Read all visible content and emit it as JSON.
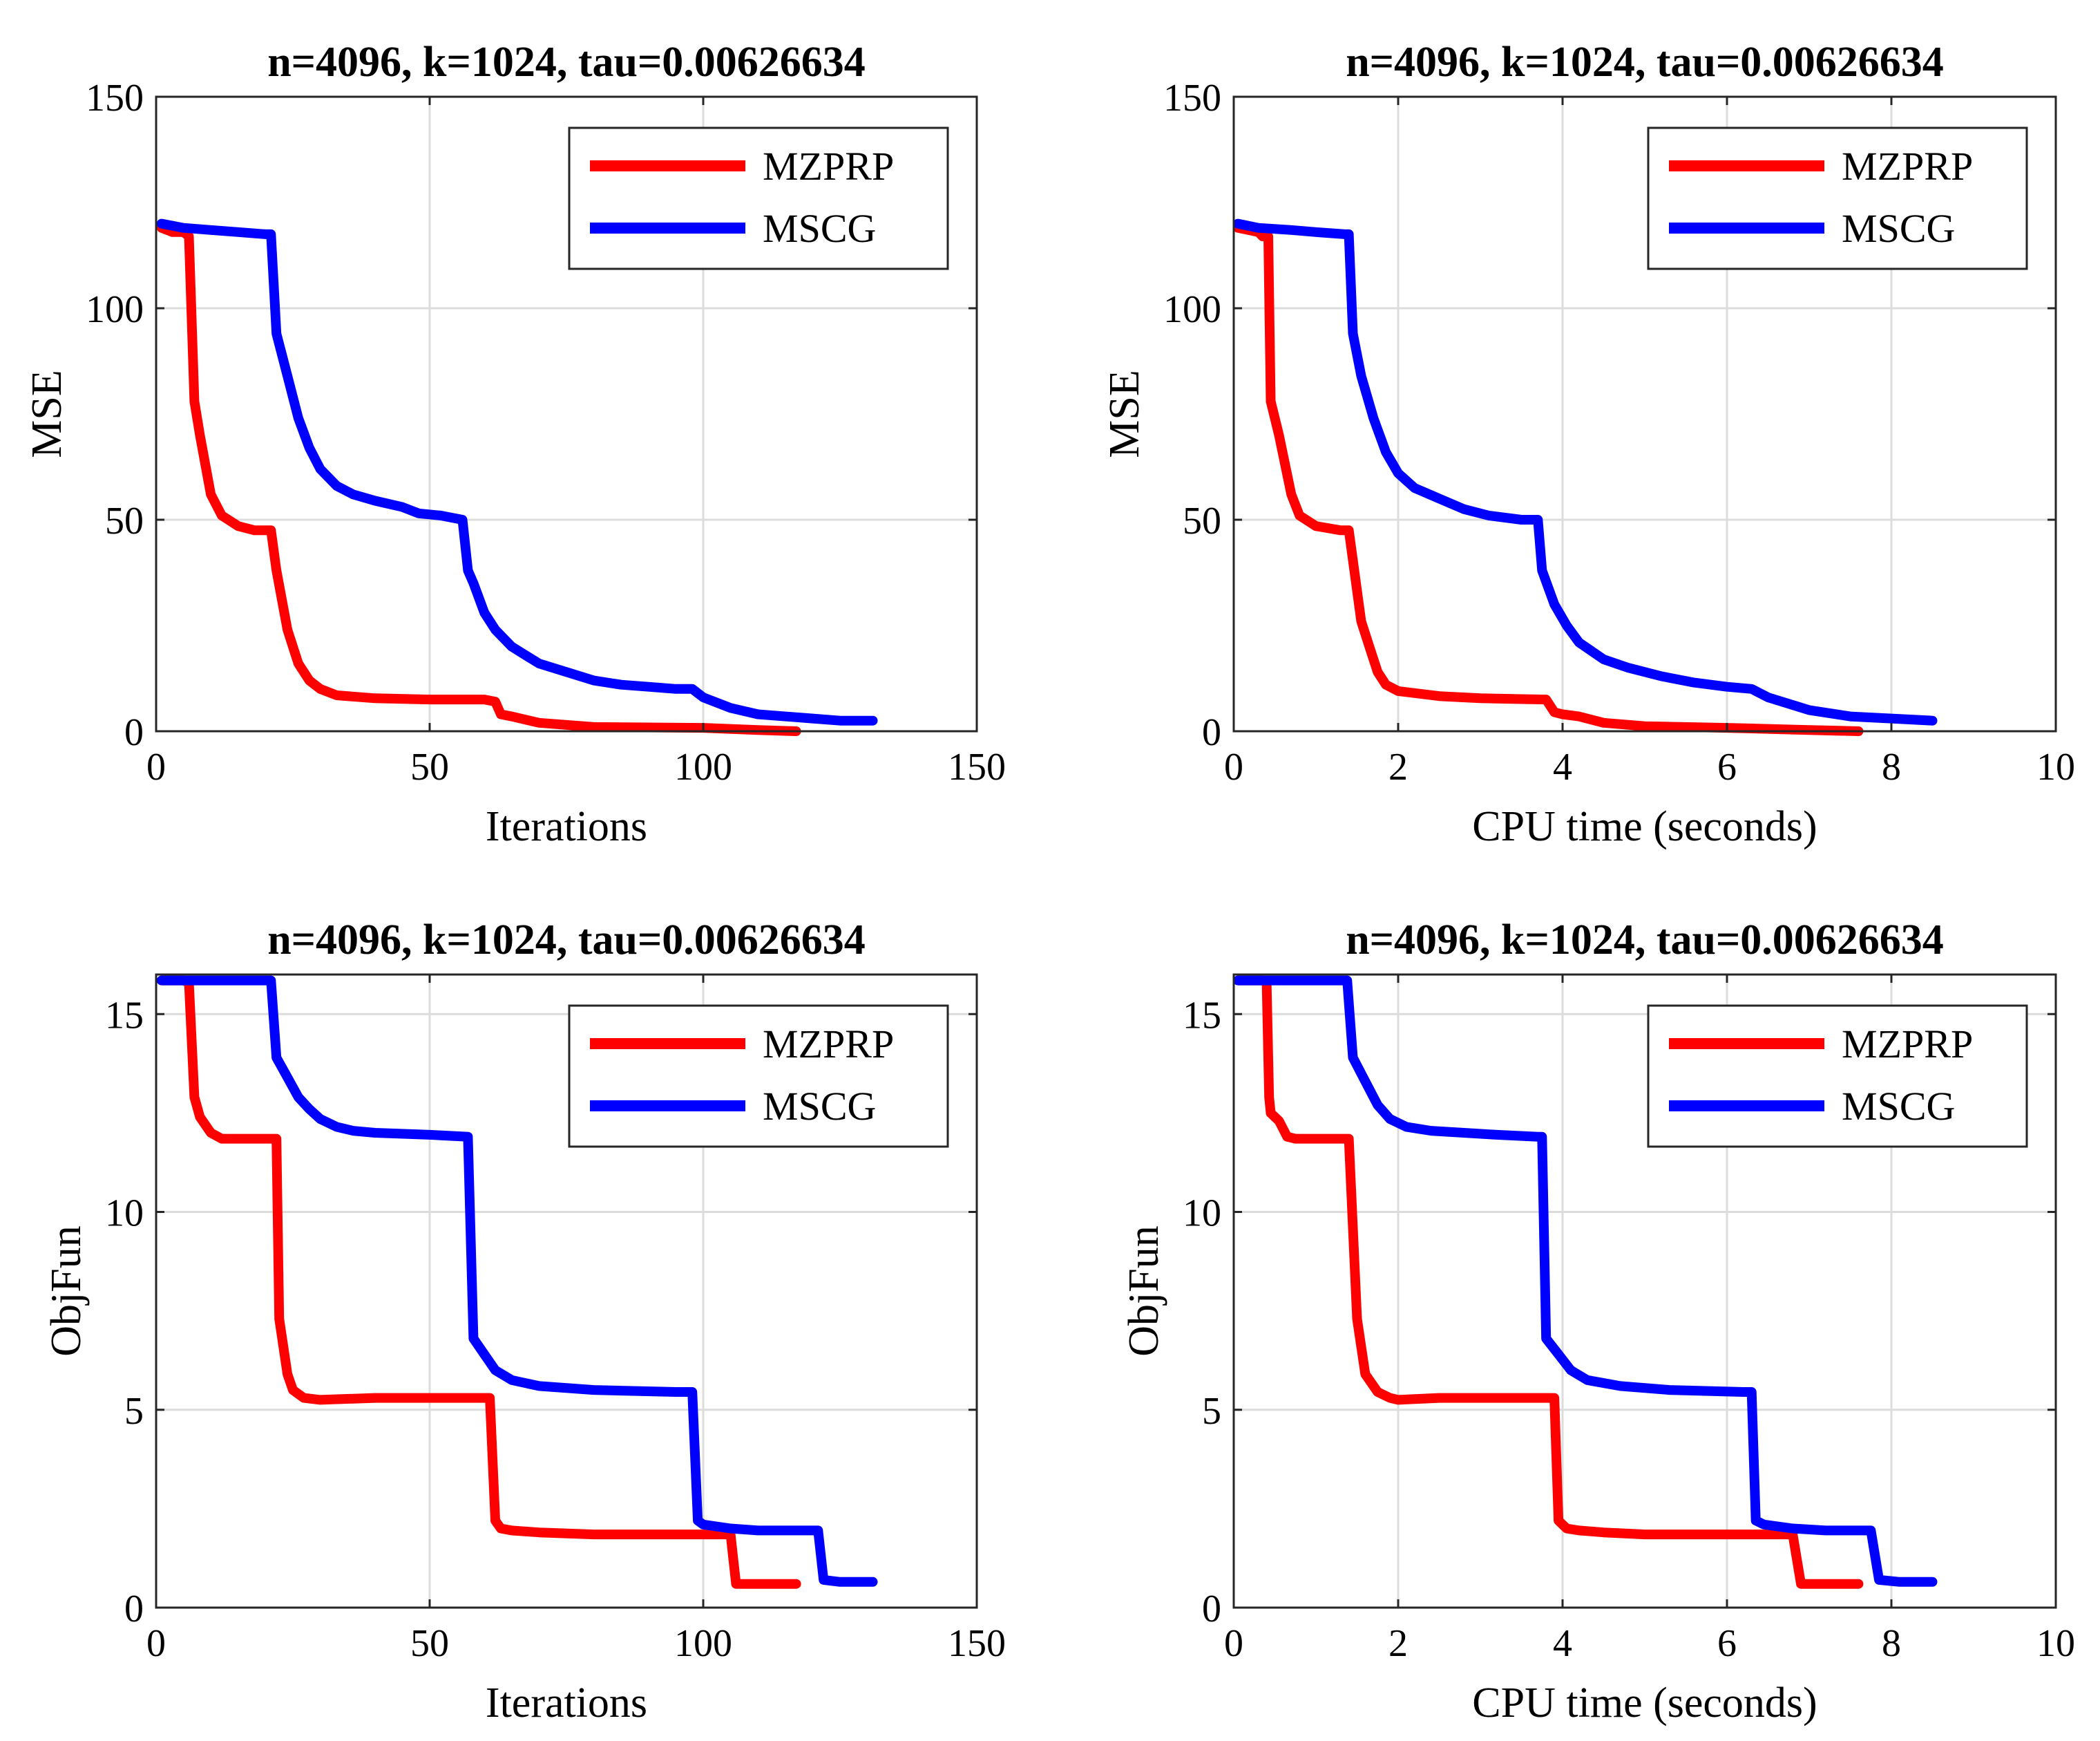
{
  "chart_data": [
    {
      "type": "line",
      "title": "n=4096, k=1024, tau=0.00626634",
      "xlabel": "Iterations",
      "ylabel": "MSE",
      "xlim": [
        0,
        150
      ],
      "ylim": [
        0,
        150
      ],
      "xticks": [
        0,
        50,
        100,
        150
      ],
      "yticks": [
        0,
        50,
        100,
        150
      ],
      "xtick_labels": [
        "0",
        "50",
        "100",
        "150"
      ],
      "ytick_labels": [
        "0",
        "50",
        "100",
        "150"
      ],
      "grid": true,
      "legend": "top-right",
      "series": [
        {
          "name": "MZPRP",
          "color": "#ff0000",
          "x": [
            1,
            3,
            5,
            6,
            7,
            8,
            10,
            12,
            15,
            18,
            21,
            22,
            24,
            26,
            28,
            30,
            33,
            40,
            50,
            60,
            62,
            63,
            65,
            70,
            80,
            100,
            110,
            117
          ],
          "y": [
            119,
            118,
            118,
            117,
            78,
            70,
            56,
            51,
            48.5,
            47.5,
            47.5,
            38,
            24,
            16,
            12,
            10,
            8.5,
            7.8,
            7.5,
            7.5,
            7,
            4,
            3.5,
            2,
            1,
            0.8,
            0.3,
            0
          ]
        },
        {
          "name": "MSCG",
          "color": "#0000ff",
          "x": [
            1,
            5,
            10,
            15,
            20,
            21,
            22,
            24,
            26,
            28,
            30,
            33,
            36,
            40,
            45,
            48,
            52,
            56,
            57,
            58,
            60,
            62,
            65,
            70,
            75,
            80,
            85,
            90,
            95,
            98,
            100,
            105,
            110,
            120,
            125,
            131
          ],
          "y": [
            120,
            119,
            118.5,
            118,
            117.5,
            117.5,
            94,
            84,
            74,
            67,
            62,
            58,
            56,
            54.5,
            53,
            51.5,
            51,
            50,
            38,
            35,
            28,
            24,
            20,
            16,
            14,
            12,
            11,
            10.5,
            10,
            10,
            8,
            5.5,
            4,
            3,
            2.5,
            2.5
          ]
        }
      ]
    },
    {
      "type": "line",
      "title": "n=4096, k=1024, tau=0.00626634",
      "xlabel": "CPU time (seconds)",
      "ylabel": "MSE",
      "xlim": [
        0,
        10
      ],
      "ylim": [
        0,
        150
      ],
      "xticks": [
        0,
        2,
        4,
        6,
        8,
        10
      ],
      "yticks": [
        0,
        50,
        100,
        150
      ],
      "xtick_labels": [
        "0",
        "2",
        "4",
        "6",
        "8",
        "10"
      ],
      "ytick_labels": [
        "0",
        "50",
        "100",
        "150"
      ],
      "grid": true,
      "legend": "top-right",
      "series": [
        {
          "name": "MZPRP",
          "color": "#ff0000",
          "x": [
            0.05,
            0.3,
            0.35,
            0.42,
            0.45,
            0.55,
            0.7,
            0.8,
            1.0,
            1.3,
            1.4,
            1.55,
            1.65,
            1.75,
            1.85,
            2.0,
            2.5,
            3.0,
            3.5,
            3.8,
            3.9,
            4.0,
            4.2,
            4.5,
            5.0,
            6.0,
            7.0,
            7.6
          ],
          "y": [
            119,
            118,
            117,
            117,
            78,
            70,
            56,
            51,
            48.5,
            47.5,
            47.5,
            26,
            20,
            14,
            11,
            9.5,
            8.3,
            7.8,
            7.6,
            7.5,
            4.5,
            4,
            3.5,
            2,
            1.2,
            0.8,
            0.3,
            0
          ]
        },
        {
          "name": "MSCG",
          "color": "#0000ff",
          "x": [
            0.05,
            0.3,
            0.7,
            1.0,
            1.35,
            1.4,
            1.45,
            1.55,
            1.7,
            1.85,
            2.0,
            2.2,
            2.5,
            2.8,
            3.1,
            3.5,
            3.7,
            3.75,
            3.9,
            4.05,
            4.2,
            4.5,
            4.8,
            5.2,
            5.6,
            6.0,
            6.3,
            6.5,
            7.0,
            7.5,
            8.0,
            8.5
          ],
          "y": [
            120,
            119,
            118.5,
            118,
            117.5,
            117.5,
            94,
            84,
            74,
            66,
            61,
            57.5,
            55,
            52.5,
            51,
            50,
            50,
            38,
            30,
            25,
            21,
            17,
            15,
            13,
            11.5,
            10.5,
            10,
            8,
            5,
            3.5,
            3,
            2.5
          ]
        }
      ]
    },
    {
      "type": "line",
      "title": "n=4096, k=1024, tau=0.00626634",
      "xlabel": "Iterations",
      "ylabel": "ObjFun",
      "xlim": [
        0,
        150
      ],
      "ylim": [
        0,
        16
      ],
      "xticks": [
        0,
        50,
        100,
        150
      ],
      "yticks": [
        0,
        5,
        10,
        15
      ],
      "xtick_labels": [
        "0",
        "50",
        "100",
        "150"
      ],
      "ytick_labels": [
        "0",
        "5",
        "10",
        "15"
      ],
      "grid": true,
      "legend": "top-right",
      "series": [
        {
          "name": "MZPRP",
          "color": "#ff0000",
          "x": [
            1,
            5,
            6,
            7,
            8,
            10,
            12,
            15,
            20,
            21,
            22,
            22.5,
            24,
            25,
            27,
            30,
            40,
            55,
            60,
            61,
            62,
            63,
            65,
            70,
            80,
            90,
            100,
            105,
            106,
            110,
            117
          ],
          "y": [
            15.85,
            15.85,
            15.8,
            12.9,
            12.4,
            12.0,
            11.85,
            11.85,
            11.85,
            11.85,
            11.85,
            7.3,
            5.9,
            5.5,
            5.3,
            5.25,
            5.3,
            5.3,
            5.3,
            5.3,
            2.2,
            2.0,
            1.95,
            1.9,
            1.85,
            1.85,
            1.85,
            1.85,
            0.6,
            0.6,
            0.6
          ]
        },
        {
          "name": "MSCG",
          "color": "#0000ff",
          "x": [
            1,
            10,
            20,
            21,
            22,
            24,
            26,
            28,
            30,
            33,
            36,
            40,
            50,
            57,
            58,
            60,
            62,
            65,
            70,
            80,
            95,
            98,
            99,
            100,
            105,
            110,
            120,
            121,
            122,
            125,
            131
          ],
          "y": [
            15.85,
            15.85,
            15.85,
            15.85,
            13.9,
            13.4,
            12.9,
            12.6,
            12.35,
            12.15,
            12.05,
            12.0,
            11.95,
            11.9,
            6.8,
            6.4,
            6.0,
            5.75,
            5.6,
            5.5,
            5.45,
            5.45,
            2.2,
            2.1,
            2.0,
            1.95,
            1.95,
            1.95,
            0.7,
            0.65,
            0.65
          ]
        }
      ]
    },
    {
      "type": "line",
      "title": "n=4096, k=1024, tau=0.00626634",
      "xlabel": "CPU time (seconds)",
      "ylabel": "ObjFun",
      "xlim": [
        0,
        10
      ],
      "ylim": [
        0,
        16
      ],
      "xticks": [
        0,
        2,
        4,
        6,
        8,
        10
      ],
      "yticks": [
        0,
        5,
        10,
        15
      ],
      "xtick_labels": [
        "0",
        "2",
        "4",
        "6",
        "8",
        "10"
      ],
      "ytick_labels": [
        "0",
        "5",
        "10",
        "15"
      ],
      "grid": true,
      "legend": "top-right",
      "series": [
        {
          "name": "MZPRP",
          "color": "#ff0000",
          "x": [
            0.05,
            0.35,
            0.4,
            0.43,
            0.45,
            0.55,
            0.65,
            0.75,
            1.0,
            1.35,
            1.4,
            1.5,
            1.6,
            1.75,
            1.9,
            2.0,
            2.5,
            3.0,
            3.7,
            3.9,
            3.95,
            4.05,
            4.2,
            4.5,
            5.0,
            6.0,
            6.8,
            6.9,
            7.3,
            7.6
          ],
          "y": [
            15.85,
            15.85,
            15.8,
            12.9,
            12.5,
            12.3,
            11.9,
            11.85,
            11.85,
            11.85,
            11.85,
            7.3,
            5.9,
            5.45,
            5.3,
            5.25,
            5.3,
            5.3,
            5.3,
            5.3,
            2.2,
            2.0,
            1.95,
            1.9,
            1.85,
            1.85,
            1.85,
            0.6,
            0.6,
            0.6
          ]
        },
        {
          "name": "MSCG",
          "color": "#0000ff",
          "x": [
            0.05,
            0.8,
            1.35,
            1.38,
            1.45,
            1.6,
            1.75,
            1.9,
            2.1,
            2.4,
            2.8,
            3.2,
            3.7,
            3.75,
            3.8,
            3.95,
            4.1,
            4.3,
            4.7,
            5.3,
            6.2,
            6.3,
            6.35,
            6.45,
            6.8,
            7.2,
            7.7,
            7.75,
            7.85,
            8.1,
            8.5
          ],
          "y": [
            15.85,
            15.85,
            15.85,
            15.85,
            13.9,
            13.3,
            12.7,
            12.35,
            12.15,
            12.05,
            12.0,
            11.95,
            11.9,
            11.9,
            6.8,
            6.4,
            6.0,
            5.75,
            5.6,
            5.5,
            5.45,
            5.45,
            2.2,
            2.1,
            2.0,
            1.95,
            1.95,
            1.95,
            0.7,
            0.65,
            0.65
          ]
        }
      ]
    }
  ]
}
